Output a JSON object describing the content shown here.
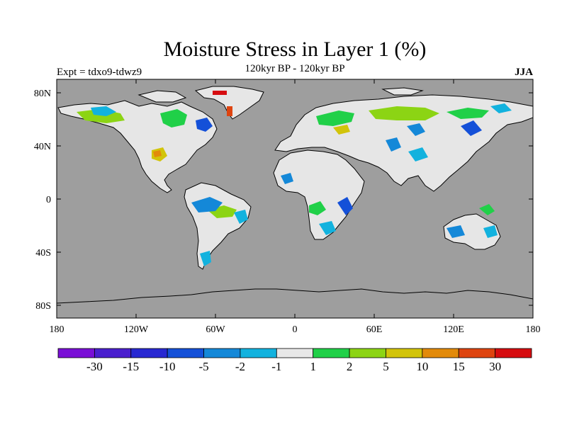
{
  "title": "Moisture Stress in Layer 1 (%)",
  "subtitle": "120kyr BP - 120kyr BP",
  "left_label": "Expt = tdxo9-tdwz9",
  "right_label": "JJA",
  "colors": {
    "ocean": "#9e9e9e",
    "land": "#e6e6e6",
    "coast": "#000000"
  },
  "lat_ticks": [
    "80N",
    "40N",
    "0",
    "40S",
    "80S"
  ],
  "lon_ticks": [
    "180",
    "120W",
    "60W",
    "0",
    "60E",
    "120E",
    "180"
  ],
  "colorbar": {
    "labels": [
      "-30",
      "-15",
      "-10",
      "-5",
      "-2",
      "-1",
      "1",
      "2",
      "5",
      "10",
      "15",
      "30"
    ],
    "colors": [
      "#7a0fd6",
      "#4a1fce",
      "#2828d2",
      "#1450d8",
      "#1488d8",
      "#12b2de",
      "#e8e8e8",
      "#20d048",
      "#8cd414",
      "#d2c40a",
      "#e28a0a",
      "#de4410",
      "#d60c10"
    ]
  }
}
